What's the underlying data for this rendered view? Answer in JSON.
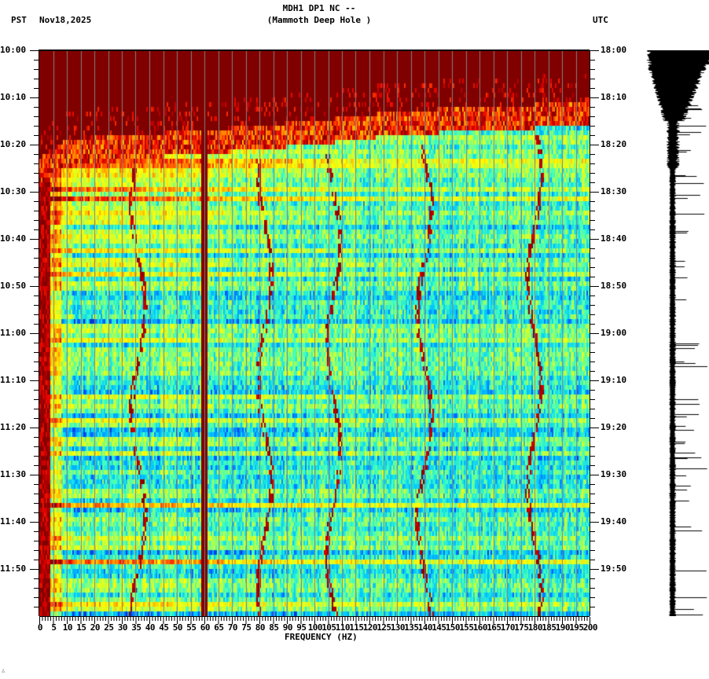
{
  "header": {
    "title_line1": "MDH1 DP1 NC --",
    "title_line2": "(Mammoth Deep Hole )",
    "left_timezone": "PST",
    "date": "Nov18,2025",
    "right_timezone": "UTC"
  },
  "footer": {
    "corner_mark": "∴"
  },
  "colors": {
    "background": "#ffffff",
    "axis": "#000000",
    "grid": "#808080",
    "colormap": [
      "#00007f",
      "#0050ff",
      "#00c8ff",
      "#40ffbf",
      "#bfff40",
      "#ffff00",
      "#ffb000",
      "#ff4000",
      "#e00000",
      "#800000"
    ],
    "saturated": "#800000"
  },
  "chart_data": {
    "type": "heatmap",
    "title": "MDH1 DP1 NC -- (Mammoth Deep Hole )",
    "subtitle": "Nov18,2025",
    "xlabel": "FREQUENCY (HZ)",
    "ylabel_left": "PST",
    "ylabel_right": "UTC",
    "xlim": [
      0,
      200
    ],
    "x_ticks": [
      0,
      5,
      10,
      15,
      20,
      25,
      30,
      35,
      40,
      45,
      50,
      55,
      60,
      65,
      70,
      75,
      80,
      85,
      90,
      95,
      100,
      105,
      110,
      115,
      120,
      125,
      130,
      135,
      140,
      145,
      150,
      155,
      160,
      165,
      170,
      175,
      180,
      185,
      190,
      195,
      200
    ],
    "x_minor_tick_step": 1,
    "grid": "vertical lines every 5 Hz",
    "y_ticks_left": [
      "10:00",
      "10:10",
      "10:20",
      "10:30",
      "10:40",
      "10:50",
      "11:00",
      "11:10",
      "11:20",
      "11:30",
      "11:40",
      "11:50"
    ],
    "y_ticks_right": [
      "18:00",
      "18:10",
      "18:20",
      "18:30",
      "18:40",
      "18:50",
      "19:00",
      "19:10",
      "19:20",
      "19:30",
      "19:40",
      "19:50"
    ],
    "y_minor_tick_minutes": 2,
    "time_span_minutes": 120,
    "features": {
      "saturated_onset_minutes_by_freq": [
        [
          0,
          25
        ],
        [
          10,
          21
        ],
        [
          30,
          20
        ],
        [
          60,
          19
        ],
        [
          100,
          17
        ],
        [
          130,
          15
        ],
        [
          160,
          14
        ],
        [
          200,
          13
        ]
      ],
      "persistent_line_hz": 60,
      "low_freq_band_hz": [
        0,
        4
      ],
      "recurring_narrow_lines_hz": [
        36,
        82,
        107,
        140,
        180
      ],
      "dominant_background": "cyan/green (low-mid power)",
      "upper_region": "dark red saturated (high power) above onset curve"
    }
  },
  "seismogram": {
    "description": "vertical waveform trace, large amplitude 18:00-18:15 tapering to narrow trace with spikes",
    "color": "#000000"
  }
}
